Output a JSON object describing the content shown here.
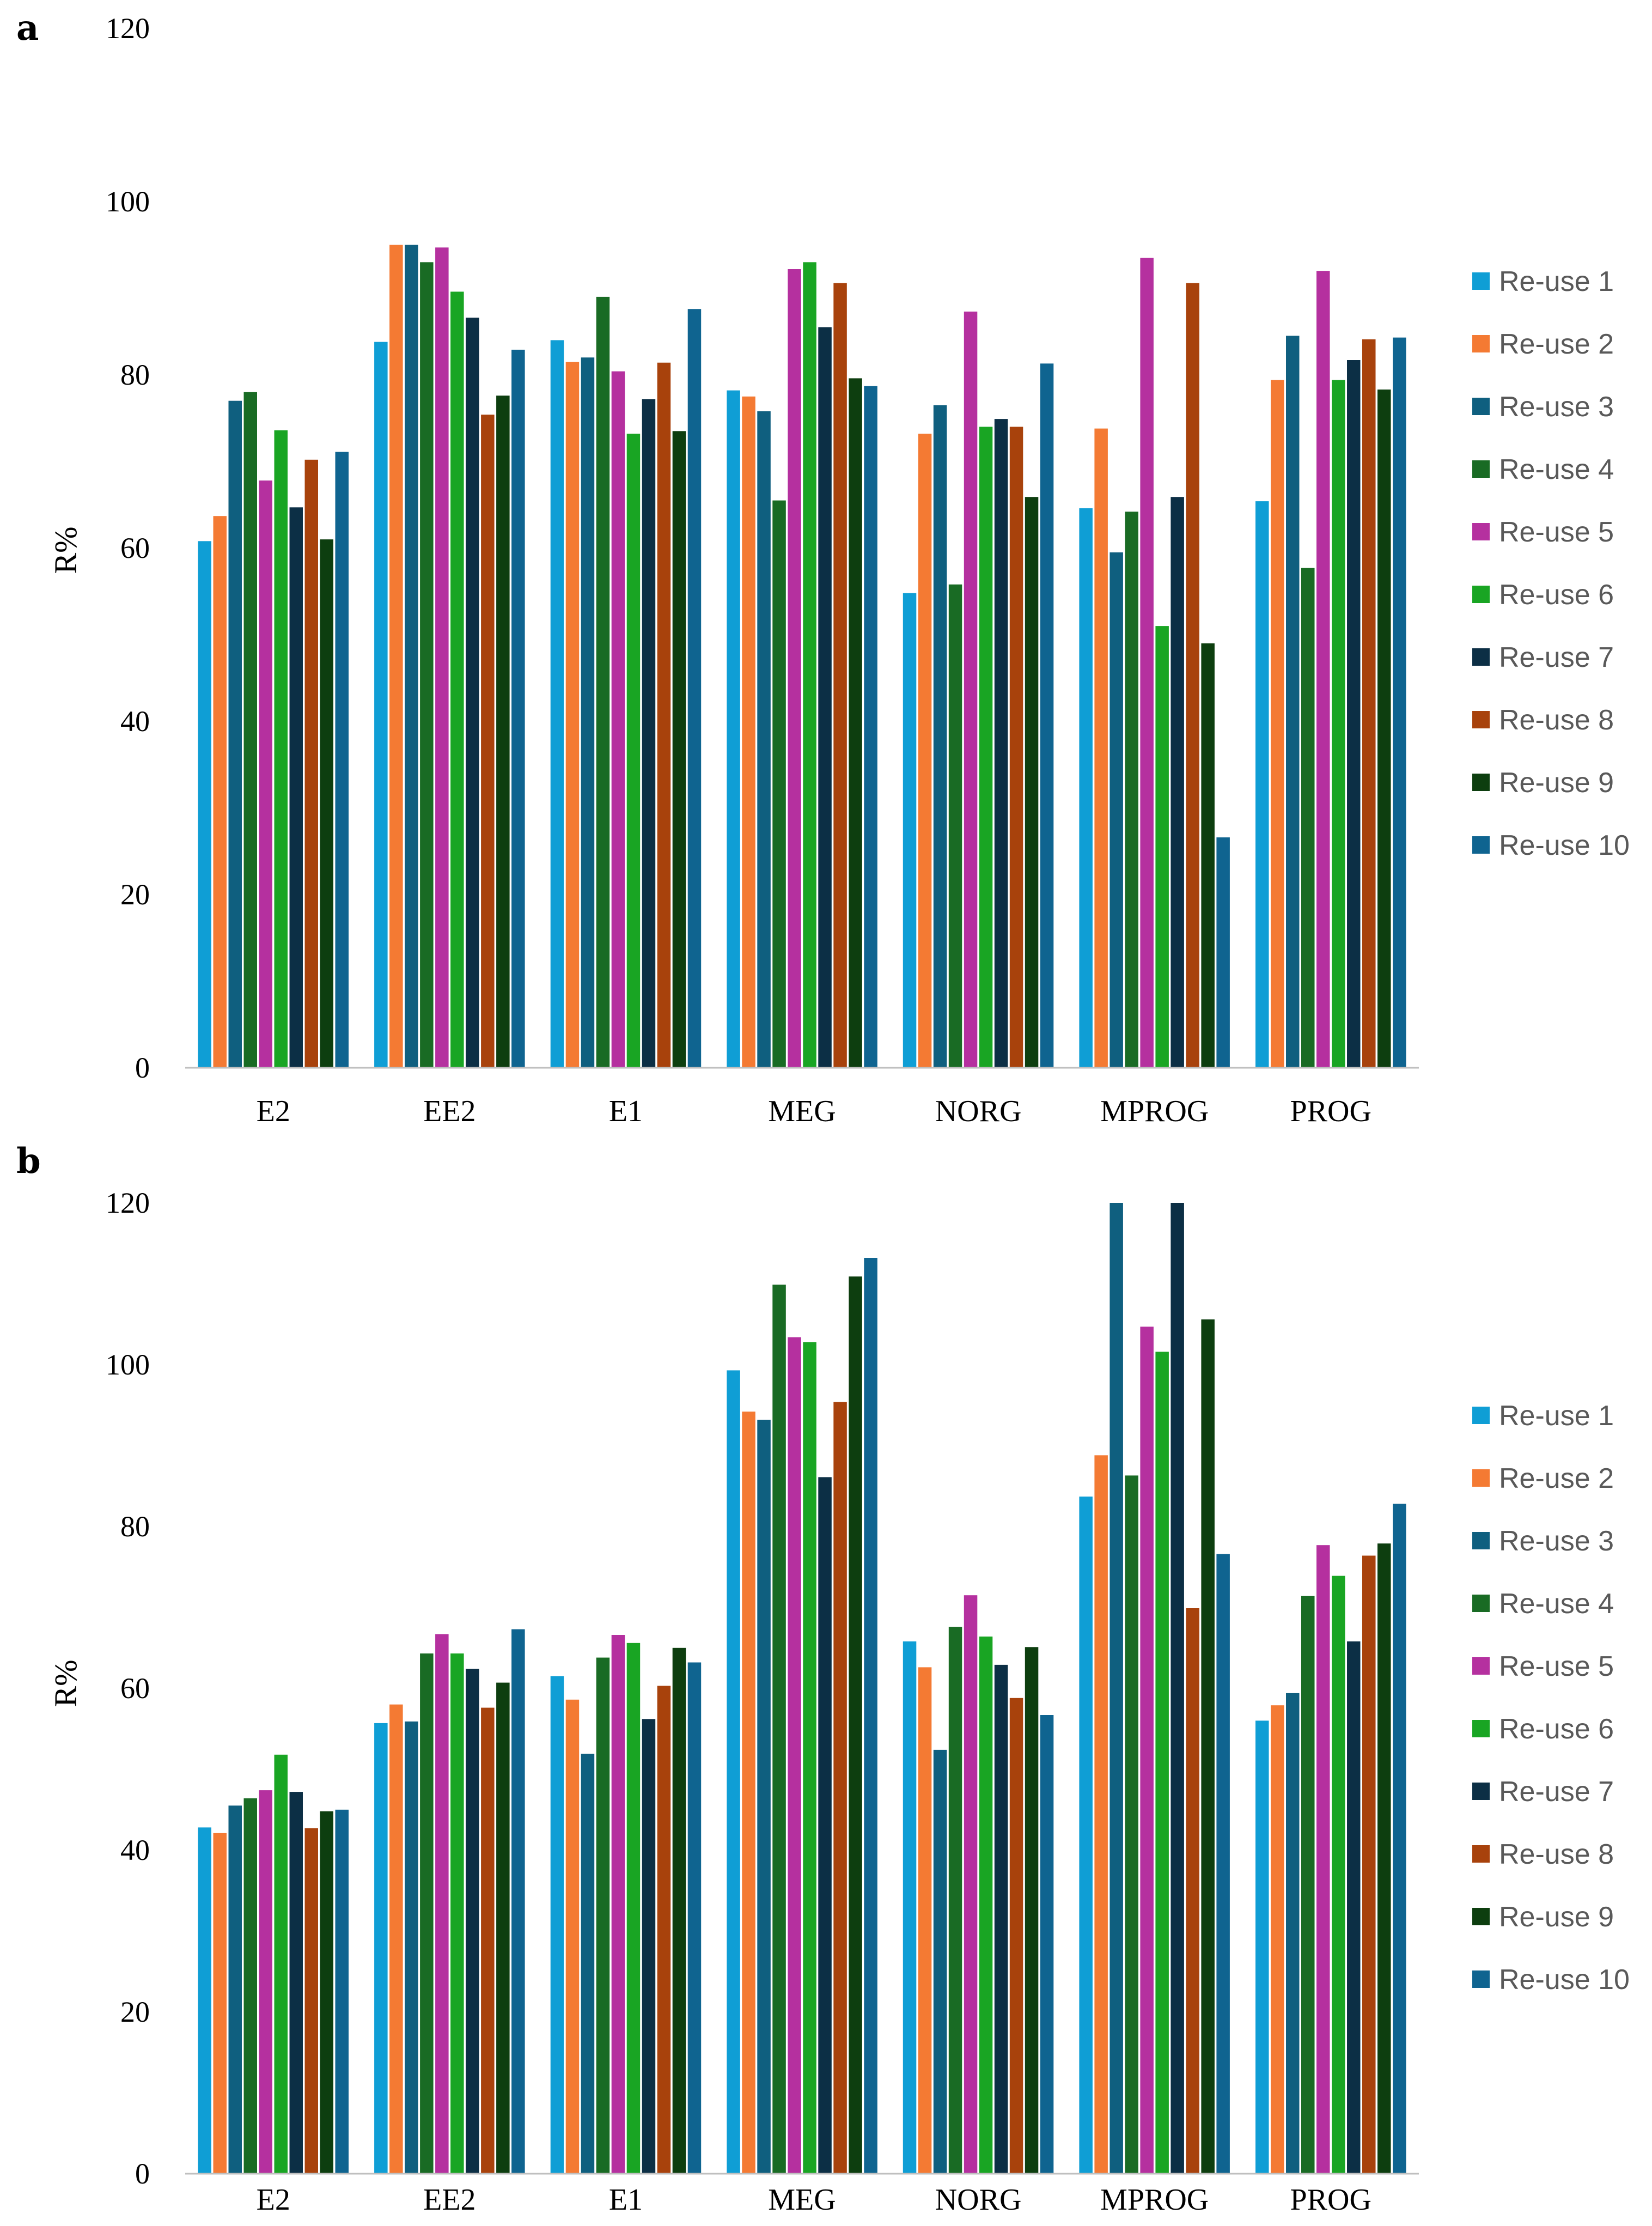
{
  "panel_labels": [
    "a",
    "b"
  ],
  "colors": [
    "#0f9ed5",
    "#f47a33",
    "#0f5f7f",
    "#196b24",
    "#b5309f",
    "#19a523",
    "#0c2f45",
    "#a8420c",
    "#0d3e0f",
    "#0f6490"
  ],
  "chart_data": [
    {
      "type": "bar",
      "title": "",
      "xlabel": "",
      "ylabel": "R%",
      "ylim": [
        0,
        120
      ],
      "yticks": [
        "0",
        "20",
        "40",
        "60",
        "80",
        "100",
        "120"
      ],
      "grid": false,
      "legend_position": "right",
      "categories": [
        "E2",
        "EE2",
        "E1",
        "MEG",
        "NORG",
        "MPROG",
        "PROG"
      ],
      "series": [
        {
          "name": "Re-use 1",
          "values": [
            60.8,
            83.8,
            84.0,
            78.2,
            54.8,
            64.6,
            65.4
          ]
        },
        {
          "name": "Re-use 2",
          "values": [
            63.7,
            95.0,
            81.5,
            77.5,
            73.2,
            73.8,
            79.4
          ]
        },
        {
          "name": "Re-use 3",
          "values": [
            77.0,
            95.0,
            82.0,
            75.8,
            76.5,
            59.5,
            84.5
          ]
        },
        {
          "name": "Re-use 4",
          "values": [
            78.0,
            93.0,
            89.0,
            65.5,
            55.8,
            64.2,
            57.7
          ]
        },
        {
          "name": "Re-use 5",
          "values": [
            67.8,
            94.7,
            80.4,
            92.2,
            87.3,
            93.5,
            92.0
          ]
        },
        {
          "name": "Re-use 6",
          "values": [
            73.6,
            89.6,
            73.2,
            93.0,
            74.0,
            51.0,
            79.4
          ]
        },
        {
          "name": "Re-use 7",
          "values": [
            64.7,
            86.6,
            77.2,
            85.5,
            74.9,
            65.9,
            81.7
          ]
        },
        {
          "name": "Re-use 8",
          "values": [
            70.2,
            75.4,
            81.4,
            90.6,
            74.0,
            90.6,
            84.1
          ]
        },
        {
          "name": "Re-use 9",
          "values": [
            61.0,
            77.6,
            73.5,
            79.6,
            65.9,
            49.0,
            78.3
          ]
        },
        {
          "name": "Re-use 10",
          "values": [
            71.1,
            82.9,
            87.6,
            78.7,
            81.3,
            26.6,
            84.3
          ]
        }
      ]
    },
    {
      "type": "bar",
      "title": "",
      "xlabel": "",
      "ylabel": "R%",
      "ylim": [
        0,
        120
      ],
      "yticks": [
        "0",
        "20",
        "40",
        "60",
        "80",
        "100",
        "120"
      ],
      "grid": false,
      "legend_position": "right",
      "categories": [
        "E2",
        "EE2",
        "E1",
        "MEG",
        "NORG",
        "MPROG",
        "PROG"
      ],
      "series": [
        {
          "name": "Re-use 1",
          "values": [
            42.8,
            55.7,
            61.5,
            99.3,
            65.8,
            83.7,
            56.0
          ]
        },
        {
          "name": "Re-use 2",
          "values": [
            42.1,
            58.0,
            58.6,
            94.2,
            62.6,
            88.8,
            57.9
          ]
        },
        {
          "name": "Re-use 3",
          "values": [
            45.5,
            55.9,
            51.9,
            93.2,
            52.4,
            120.0,
            59.4
          ]
        },
        {
          "name": "Re-use 4",
          "values": [
            46.4,
            64.3,
            63.8,
            109.9,
            67.6,
            86.3,
            71.4
          ]
        },
        {
          "name": "Re-use 5",
          "values": [
            47.4,
            66.7,
            66.6,
            103.4,
            71.5,
            104.7,
            77.7
          ]
        },
        {
          "name": "Re-use 6",
          "values": [
            51.8,
            64.3,
            65.6,
            102.8,
            66.4,
            101.6,
            73.9
          ]
        },
        {
          "name": "Re-use 7",
          "values": [
            47.2,
            62.4,
            56.2,
            86.1,
            62.9,
            120.0,
            65.8
          ]
        },
        {
          "name": "Re-use 8",
          "values": [
            42.7,
            57.6,
            60.3,
            95.4,
            58.8,
            69.9,
            76.4
          ]
        },
        {
          "name": "Re-use 9",
          "values": [
            44.8,
            60.7,
            65.0,
            110.9,
            65.1,
            105.6,
            77.9
          ]
        },
        {
          "name": "Re-use 10",
          "values": [
            45.0,
            67.3,
            63.2,
            113.2,
            56.7,
            76.6,
            82.8
          ]
        }
      ]
    }
  ]
}
